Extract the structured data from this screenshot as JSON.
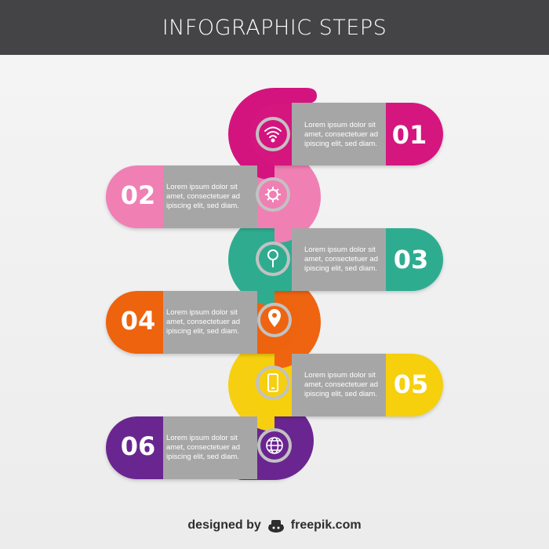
{
  "header": {
    "title": "INFOGRAPHIC STEPS"
  },
  "steps": [
    {
      "number": "01",
      "icon": "wifi-icon",
      "color": "#d4147e",
      "lines": [
        "Lorem ipsum dolor sit",
        "amet, consectetuer ad",
        "ipiscing elit, sed diam."
      ]
    },
    {
      "number": "02",
      "icon": "gear-icon",
      "color": "#f07fb4",
      "lines": [
        "Lorem ipsum dolor sit",
        "amet, consectetuer ad",
        "ipiscing elit, sed diam."
      ]
    },
    {
      "number": "03",
      "icon": "magnifier-icon",
      "color": "#2fac90",
      "lines": [
        "Lorem ipsum dolor sit",
        "amet, consectetuer ad",
        "ipiscing elit, sed diam."
      ]
    },
    {
      "number": "04",
      "icon": "map-pin-icon",
      "color": "#ee6411",
      "lines": [
        "Lorem ipsum dolor sit",
        "amet, consectetuer ad",
        "ipiscing elit, sed diam."
      ]
    },
    {
      "number": "05",
      "icon": "phone-icon",
      "color": "#f6cf10",
      "lines": [
        "Lorem ipsum dolor sit",
        "amet, consectetuer ad",
        "ipiscing elit, sed diam."
      ]
    },
    {
      "number": "06",
      "icon": "globe-icon",
      "color": "#6a2590",
      "lines": [
        "Lorem ipsum dolor sit",
        "amet, consectetuer ad",
        "ipiscing elit, sed diam."
      ]
    }
  ],
  "footer": {
    "designed": "designed by",
    "brand": "freepik.com"
  }
}
